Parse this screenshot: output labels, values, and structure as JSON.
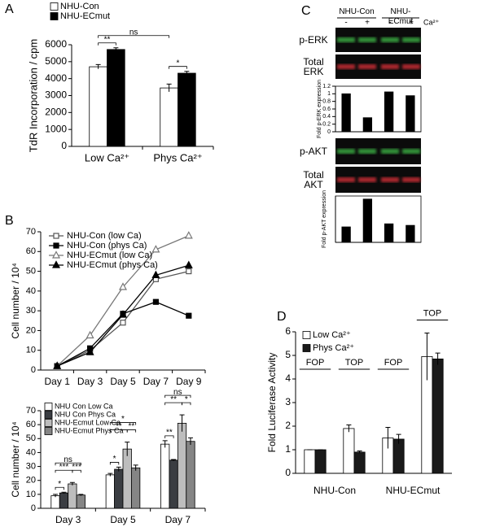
{
  "chart_data": [
    {
      "type": "bar",
      "label": "A",
      "categories": [
        "Low Ca²⁺",
        "Phys Ca²⁺"
      ],
      "ylabel": "TdR Incorporation / cpm",
      "ylim": [
        0,
        6000
      ],
      "yticks": [
        0,
        1000,
        2000,
        3000,
        4000,
        5000,
        6000
      ],
      "series": [
        {
          "name": "NHU-Con",
          "color": "#ffffff",
          "values": [
            4700,
            3450
          ],
          "errors": [
            130,
            230
          ]
        },
        {
          "name": "NHU-ECmut",
          "color": "#000000",
          "values": [
            5720,
            4320
          ],
          "errors": [
            100,
            110
          ]
        }
      ],
      "annotations": [
        "**",
        "*",
        "ns"
      ]
    },
    {
      "type": "line",
      "label": "B",
      "categories": [
        "Day 1",
        "Day 3",
        "Day 5",
        "Day 7",
        "Day 9"
      ],
      "ylabel": "Cell number / 10⁴",
      "ylim": [
        0,
        70
      ],
      "yticks": [
        0,
        10,
        20,
        30,
        40,
        50,
        60,
        70
      ],
      "series": [
        {
          "name": "NHU-Con (low Ca)",
          "color": "#555555",
          "marker": "square-open",
          "values": [
            2,
            10,
            24,
            46,
            50
          ]
        },
        {
          "name": "NHU-Con (phys Ca)",
          "color": "#000000",
          "marker": "square",
          "values": [
            2,
            11,
            28.5,
            34.5,
            27.5
          ]
        },
        {
          "name": "NHU-ECmut (low Ca)",
          "color": "#777777",
          "marker": "triangle-open",
          "values": [
            2,
            17.5,
            42,
            61,
            68
          ]
        },
        {
          "name": "NHU-ECmut (phys Ca)",
          "color": "#000000",
          "marker": "triangle",
          "values": [
            2,
            9,
            28,
            48,
            53
          ]
        }
      ]
    },
    {
      "type": "bar",
      "categories": [
        "Day 3",
        "Day 5",
        "Day 7"
      ],
      "ylabel": "Cell number / 10⁴",
      "ylim": [
        0,
        70
      ],
      "yticks": [
        0,
        10,
        20,
        30,
        40,
        50,
        60,
        70
      ],
      "series": [
        {
          "name": "NHU Con Low Ca",
          "color": "#ffffff",
          "values": [
            9,
            24,
            46
          ],
          "errors": [
            1,
            1,
            2.5
          ]
        },
        {
          "name": "NHU Con Phys Ca",
          "color": "#3a3d42",
          "values": [
            11,
            28,
            34.5
          ],
          "errors": [
            0.5,
            1.5,
            0.5
          ]
        },
        {
          "name": "NHU-Ecmut Low Ca",
          "color": "#bdbdbd",
          "values": [
            17.5,
            42.5,
            61
          ],
          "errors": [
            1,
            5,
            6
          ]
        },
        {
          "name": "NHU-Ecmut Phys Ca",
          "color": "#858585",
          "values": [
            9.5,
            29,
            48
          ],
          "errors": [
            0.5,
            2,
            2.5
          ]
        }
      ],
      "annotations": [
        "*",
        "***",
        "***",
        "ns",
        "*",
        "**",
        "**",
        "*",
        "**",
        "**",
        "*",
        "ns"
      ]
    },
    {
      "type": "bar",
      "ylabel": "Fold p-ERK expression",
      "ylim": [
        0,
        1.2
      ],
      "yticks": [
        0,
        0.2,
        0.4,
        0.6,
        0.8,
        1,
        1.2
      ],
      "color": "#000000",
      "values": [
        1,
        0.37,
        1.05,
        0.95
      ]
    },
    {
      "type": "bar",
      "ylabel": "Fold p-AKT expression",
      "ylim": [
        0,
        3
      ],
      "color": "#000000",
      "values": [
        1,
        2.8,
        1.2,
        1.1
      ]
    },
    {
      "type": "bar",
      "label": "D",
      "categories": [
        "FOP",
        "TOP",
        "FOP",
        "TOP"
      ],
      "groups": [
        "NHU-Con",
        "NHU-ECmut"
      ],
      "ylabel": "Fold Luciferase Activity",
      "ylim": [
        0,
        6
      ],
      "yticks": [
        0,
        1,
        2,
        3,
        4,
        5,
        6
      ],
      "series": [
        {
          "name": "Low Ca²⁺",
          "color": "#ffffff",
          "values": [
            1,
            1.9,
            1.5,
            4.95
          ],
          "errors": [
            0,
            0.15,
            0.45,
            1.0
          ]
        },
        {
          "name": "Phys Ca²⁺",
          "color": "#1a1a1a",
          "values": [
            1,
            0.9,
            1.45,
            4.85
          ],
          "errors": [
            0,
            0.05,
            0.2,
            0.25
          ]
        }
      ]
    }
  ],
  "blot": {
    "label": "C",
    "groups": [
      "NHU-Con",
      "NHU-ECmut"
    ],
    "treatments": [
      "-",
      "+",
      "-",
      "+"
    ],
    "treatment_label": "Ca²⁺",
    "rows": [
      "p-ERK",
      "Total ERK",
      "p-AKT",
      "Total AKT"
    ]
  }
}
